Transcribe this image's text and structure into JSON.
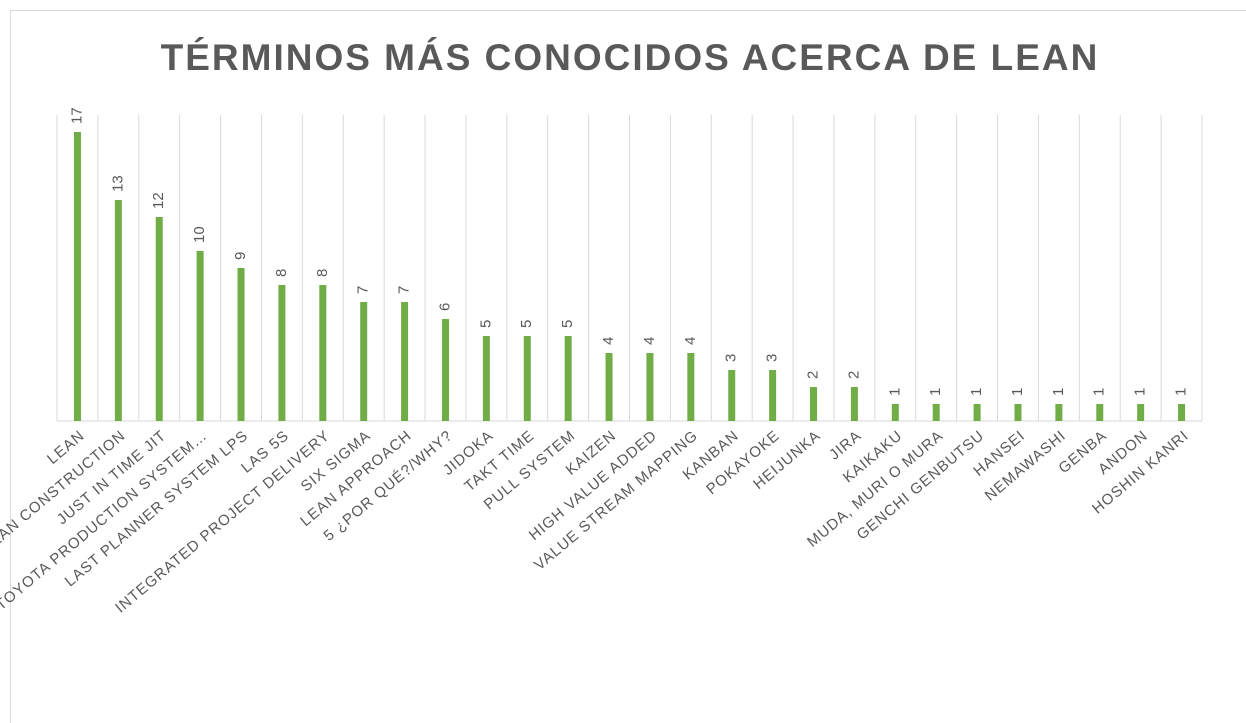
{
  "chart_data": {
    "type": "bar",
    "title": "TÉRMINOS MÁS CONOCIDOS ACERCA DE LEAN",
    "categories": [
      "LEAN",
      "LEAN CONSTRUCTION",
      "JUST IN TIME JIT",
      "TOYOTA PRODUCTION SYSTEM…",
      "LAST PLANNER SYSTEM LPS",
      "LAS 5S",
      "INTEGRATED PROJECT DELIVERY",
      "SIX SIGMA",
      "LEAN APPROACH",
      "5 ¿POR QUÉ?/WHY?",
      "JIDOKA",
      "TAKT TIME",
      "PULL SYSTEM",
      "KAIZEN",
      "HIGH VALUE ADDED",
      "VALUE STREAM MAPPING",
      "KANBAN",
      "POKAYOKE",
      "HEIJUNKA",
      "JIRA",
      "KAIKAKU",
      "MUDA, MURI O MURA",
      "GENCHI GENBUTSU",
      "HANSEI",
      "NEMAWASHI",
      "GENBA",
      "ANDON",
      "HOSHIN KANRI"
    ],
    "values": [
      17,
      13,
      12,
      10,
      9,
      8,
      8,
      7,
      7,
      6,
      5,
      5,
      5,
      4,
      4,
      4,
      3,
      3,
      2,
      2,
      1,
      1,
      1,
      1,
      1,
      1,
      1,
      1
    ],
    "color": "#70ad47",
    "ylim": [
      0,
      18
    ]
  }
}
